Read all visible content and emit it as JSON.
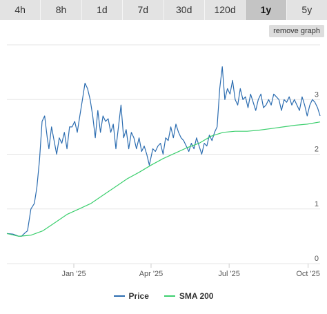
{
  "range_tabs": [
    {
      "label": "4h",
      "active": false
    },
    {
      "label": "8h",
      "active": false
    },
    {
      "label": "1d",
      "active": false
    },
    {
      "label": "7d",
      "active": false
    },
    {
      "label": "30d",
      "active": false
    },
    {
      "label": "120d",
      "active": false
    },
    {
      "label": "1y",
      "active": true
    },
    {
      "label": "5y",
      "active": false
    }
  ],
  "remove_graph_label": "remove graph",
  "colors": {
    "price": "#2b6cb0",
    "sma": "#3ccf6e",
    "grid": "#e6e6e6",
    "axis_text": "#555555"
  },
  "chart_data": {
    "type": "line",
    "title": "",
    "xlabel": "",
    "ylabel": "",
    "ylim": [
      0,
      4
    ],
    "yticks": [
      0,
      1,
      2,
      3
    ],
    "xlim": [
      "2024-10-15",
      "2025-10-15"
    ],
    "xticks": [
      {
        "label": "Jan '25",
        "date": "2025-01-01"
      },
      {
        "label": "Apr '25",
        "date": "2025-04-01"
      },
      {
        "label": "Jul '25",
        "date": "2025-07-01"
      },
      {
        "label": "Oct '25",
        "date": "2025-10-01"
      }
    ],
    "legend_position": "bottom",
    "grid": true,
    "series": [
      {
        "name": "Price",
        "x": [
          "2024-10-15",
          "2024-10-22",
          "2024-10-29",
          "2024-11-01",
          "2024-11-05",
          "2024-11-08",
          "2024-11-12",
          "2024-11-16",
          "2024-11-19",
          "2024-11-22",
          "2024-11-25",
          "2024-11-28",
          "2024-12-01",
          "2024-12-03",
          "2024-12-06",
          "2024-12-09",
          "2024-12-12",
          "2024-12-15",
          "2024-12-18",
          "2024-12-21",
          "2024-12-24",
          "2024-12-27",
          "2024-12-30",
          "2025-01-02",
          "2025-01-05",
          "2025-01-08",
          "2025-01-11",
          "2025-01-14",
          "2025-01-17",
          "2025-01-20",
          "2025-01-23",
          "2025-01-26",
          "2025-01-29",
          "2025-02-01",
          "2025-02-04",
          "2025-02-07",
          "2025-02-10",
          "2025-02-13",
          "2025-02-16",
          "2025-02-19",
          "2025-02-22",
          "2025-02-25",
          "2025-02-28",
          "2025-03-03",
          "2025-03-06",
          "2025-03-09",
          "2025-03-12",
          "2025-03-15",
          "2025-03-18",
          "2025-03-21",
          "2025-03-24",
          "2025-03-27",
          "2025-03-30",
          "2025-04-03",
          "2025-04-06",
          "2025-04-09",
          "2025-04-12",
          "2025-04-15",
          "2025-04-18",
          "2025-04-21",
          "2025-04-24",
          "2025-04-27",
          "2025-04-30",
          "2025-05-03",
          "2025-05-06",
          "2025-05-09",
          "2025-05-12",
          "2025-05-15",
          "2025-05-18",
          "2025-05-21",
          "2025-05-24",
          "2025-05-27",
          "2025-05-30",
          "2025-06-02",
          "2025-06-05",
          "2025-06-08",
          "2025-06-11",
          "2025-06-14",
          "2025-06-17",
          "2025-06-20",
          "2025-06-23",
          "2025-06-26",
          "2025-06-29",
          "2025-07-02",
          "2025-07-05",
          "2025-07-08",
          "2025-07-11",
          "2025-07-14",
          "2025-07-17",
          "2025-07-20",
          "2025-07-23",
          "2025-07-26",
          "2025-07-29",
          "2025-08-01",
          "2025-08-04",
          "2025-08-07",
          "2025-08-10",
          "2025-08-13",
          "2025-08-16",
          "2025-08-19",
          "2025-08-22",
          "2025-08-25",
          "2025-08-28",
          "2025-08-31",
          "2025-09-03",
          "2025-09-06",
          "2025-09-09",
          "2025-09-12",
          "2025-09-15",
          "2025-09-18",
          "2025-09-21",
          "2025-09-24",
          "2025-09-27",
          "2025-09-30",
          "2025-10-03",
          "2025-10-06",
          "2025-10-09",
          "2025-10-12",
          "2025-10-15"
        ],
        "values": [
          0.55,
          0.54,
          0.5,
          0.5,
          0.56,
          0.6,
          1.0,
          1.1,
          1.4,
          1.9,
          2.6,
          2.7,
          2.3,
          2.1,
          2.5,
          2.25,
          2.0,
          2.3,
          2.2,
          2.4,
          2.1,
          2.5,
          2.5,
          2.6,
          2.4,
          2.7,
          3.0,
          3.3,
          3.2,
          3.0,
          2.7,
          2.3,
          2.8,
          2.4,
          2.7,
          2.6,
          2.65,
          2.4,
          2.55,
          2.1,
          2.5,
          2.9,
          2.3,
          2.45,
          2.1,
          2.4,
          2.3,
          2.1,
          2.3,
          2.05,
          2.15,
          2.0,
          1.8,
          2.1,
          2.05,
          2.15,
          2.2,
          2.0,
          2.3,
          2.25,
          2.5,
          2.3,
          2.55,
          2.4,
          2.3,
          2.25,
          2.15,
          2.05,
          2.2,
          2.1,
          2.3,
          2.15,
          2.0,
          2.2,
          2.15,
          2.35,
          2.25,
          2.4,
          2.5,
          3.2,
          3.6,
          3.0,
          3.2,
          3.1,
          3.35,
          3.0,
          2.9,
          3.2,
          3.0,
          3.05,
          2.85,
          3.1,
          2.95,
          2.8,
          3.0,
          3.1,
          2.85,
          2.9,
          3.0,
          2.9,
          3.1,
          3.05,
          3.0,
          2.8,
          3.0,
          2.95,
          3.05,
          2.9,
          3.0,
          2.9,
          2.8,
          3.05,
          2.9,
          2.7,
          2.9,
          3.0,
          2.95,
          2.85,
          2.7
        ]
      },
      {
        "name": "SMA 200",
        "x": [
          "2024-10-15",
          "2024-10-29",
          "2024-11-12",
          "2024-11-26",
          "2024-12-10",
          "2024-12-24",
          "2025-01-07",
          "2025-01-21",
          "2025-02-04",
          "2025-02-18",
          "2025-03-04",
          "2025-03-18",
          "2025-04-01",
          "2025-04-15",
          "2025-04-29",
          "2025-05-13",
          "2025-05-27",
          "2025-06-10",
          "2025-06-24",
          "2025-07-08",
          "2025-07-22",
          "2025-08-05",
          "2025-08-19",
          "2025-09-02",
          "2025-09-16",
          "2025-09-30",
          "2025-10-15"
        ],
        "values": [
          0.55,
          0.5,
          0.52,
          0.6,
          0.75,
          0.9,
          1.0,
          1.1,
          1.25,
          1.4,
          1.55,
          1.67,
          1.8,
          1.92,
          2.02,
          2.12,
          2.2,
          2.33,
          2.4,
          2.42,
          2.42,
          2.44,
          2.47,
          2.5,
          2.53,
          2.55,
          2.59
        ]
      }
    ]
  }
}
